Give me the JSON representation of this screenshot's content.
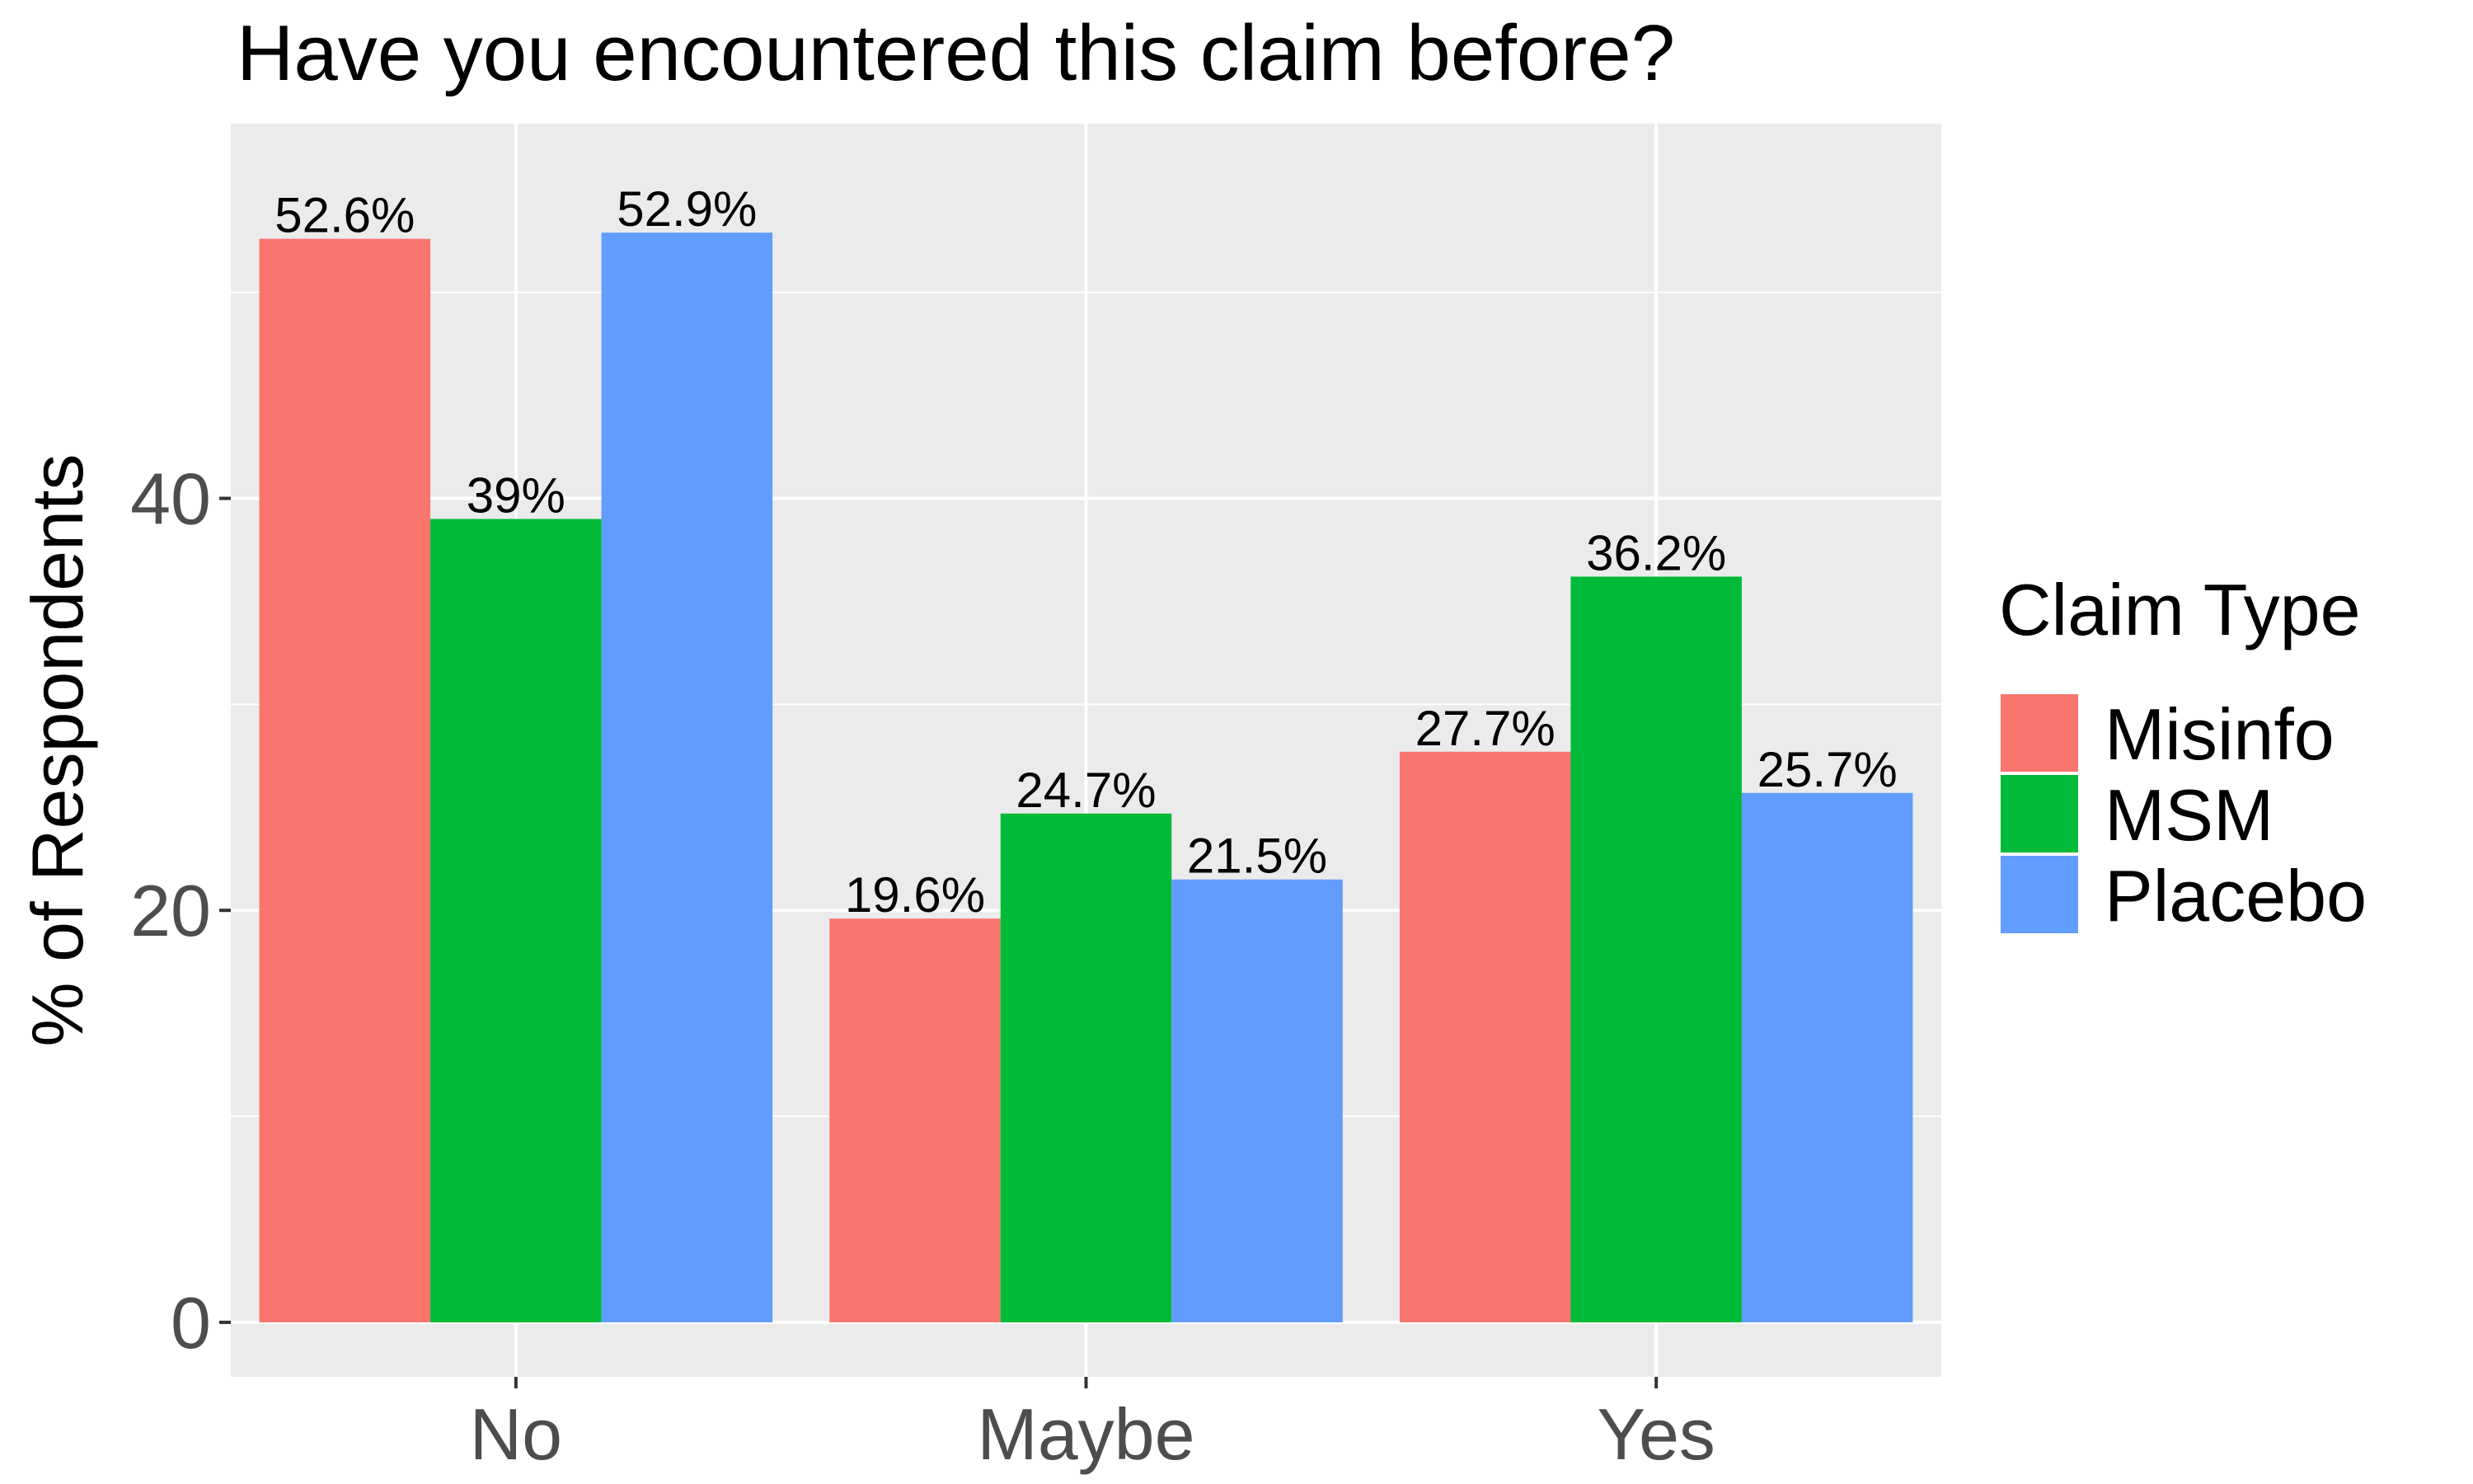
{
  "chart_data": {
    "type": "bar",
    "title": "Have you encountered this claim before?",
    "xlabel": "",
    "ylabel": "% of Respondents",
    "categories": [
      "No",
      "Maybe",
      "Yes"
    ],
    "series": [
      {
        "name": "Misinfo",
        "color": "#F8766D",
        "values": [
          52.6,
          19.6,
          27.7
        ],
        "labels": [
          "52.6%",
          "19.6%",
          "27.7%"
        ]
      },
      {
        "name": "MSM",
        "color": "#00BA38",
        "values": [
          39,
          24.7,
          36.2
        ],
        "labels": [
          "39%",
          "24.7%",
          "36.2%"
        ]
      },
      {
        "name": "Placebo",
        "color": "#619CFF",
        "values": [
          52.9,
          21.5,
          25.7
        ],
        "labels": [
          "52.9%",
          "21.5%",
          "25.7%"
        ]
      }
    ],
    "ylim": [
      -2.645,
      58.19
    ],
    "yticks": [
      0,
      20,
      40
    ],
    "ytick_labels": [
      "0",
      "20",
      "40"
    ],
    "grid": true,
    "legend": {
      "title": "Claim Type",
      "position": "right"
    },
    "panel_background": "#EBEBEB",
    "grid_color": "#FFFFFF"
  }
}
